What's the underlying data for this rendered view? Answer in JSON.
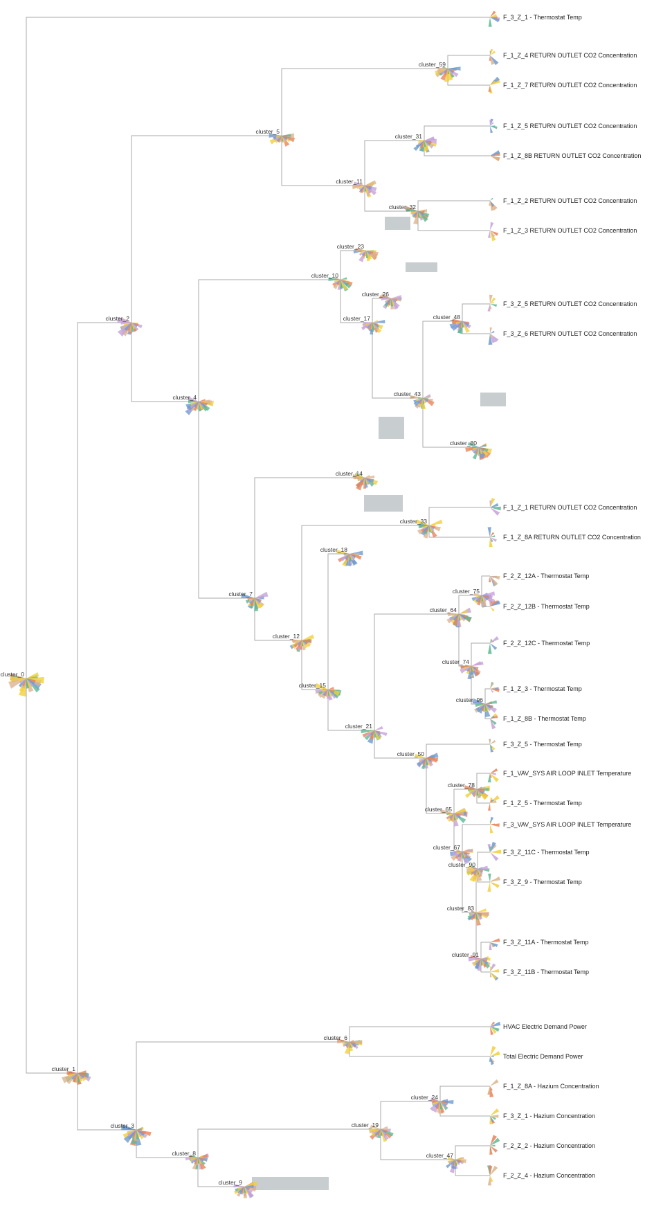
{
  "palette": [
    "#e8835b",
    "#6f9bd1",
    "#c5a2d9",
    "#f2cf3b",
    "#5cb892",
    "#dcb48c"
  ],
  "clusters": [
    {
      "id": "cluster_0"
    },
    {
      "id": "cluster_1"
    },
    {
      "id": "cluster_2"
    },
    {
      "id": "cluster_3"
    },
    {
      "id": "cluster_4"
    },
    {
      "id": "cluster_5"
    },
    {
      "id": "cluster_6"
    },
    {
      "id": "cluster_7"
    },
    {
      "id": "cluster_8"
    },
    {
      "id": "cluster_9"
    },
    {
      "id": "cluster_10"
    },
    {
      "id": "cluster_11"
    },
    {
      "id": "cluster_12"
    },
    {
      "id": "cluster_14"
    },
    {
      "id": "cluster_15"
    },
    {
      "id": "cluster_17"
    },
    {
      "id": "cluster_18"
    },
    {
      "id": "cluster_19"
    },
    {
      "id": "cluster_21"
    },
    {
      "id": "cluster_23"
    },
    {
      "id": "cluster_24"
    },
    {
      "id": "cluster_26"
    },
    {
      "id": "cluster_31"
    },
    {
      "id": "cluster_32"
    },
    {
      "id": "cluster_33"
    },
    {
      "id": "cluster_43"
    },
    {
      "id": "cluster_47"
    },
    {
      "id": "cluster_48"
    },
    {
      "id": "cluster_50"
    },
    {
      "id": "cluster_59"
    },
    {
      "id": "cluster_64"
    },
    {
      "id": "cluster_65"
    },
    {
      "id": "cluster_67"
    },
    {
      "id": "cluster_74"
    },
    {
      "id": "cluster_75"
    },
    {
      "id": "cluster_78"
    },
    {
      "id": "cluster_80"
    },
    {
      "id": "cluster_83"
    },
    {
      "id": "cluster_90"
    },
    {
      "id": "cluster_91"
    },
    {
      "id": "cluster_96"
    }
  ],
  "leaves": [
    "F_3_Z_1 - Thermostat Temp",
    "F_1_Z_4 RETURN OUTLET CO2 Concentration",
    "F_1_Z_7 RETURN OUTLET CO2 Concentration",
    "F_1_Z_5 RETURN OUTLET CO2 Concentration",
    "F_1_Z_8B RETURN OUTLET CO2 Concentration",
    "F_1_Z_2 RETURN OUTLET CO2 Concentration",
    "F_1_Z_3 RETURN OUTLET CO2 Concentration",
    "F_3_Z_5 RETURN OUTLET CO2 Concentration",
    "F_3_Z_6 RETURN OUTLET CO2 Concentration",
    "F_1_Z_1 RETURN OUTLET CO2 Concentration",
    "F_1_Z_8A RETURN OUTLET CO2 Concentration",
    "F_2_Z_12A - Thermostat Temp",
    "F_2_Z_12B - Thermostat Temp",
    "F_2_Z_12C - Thermostat Temp",
    "F_1_Z_3 - Thermostat Temp",
    "F_1_Z_8B - Thermostat Temp",
    "F_3_Z_5 - Thermostat Temp",
    "F_1_VAV_SYS AIR LOOP INLET Temperature",
    "F_1_Z_5 - Thermostat Temp",
    "F_3_VAV_SYS AIR LOOP INLET Temperature",
    "F_3_Z_11C - Thermostat Temp",
    "F_3_Z_9 - Thermostat Temp",
    "F_3_Z_11A - Thermostat Temp",
    "F_3_Z_11B - Thermostat Temp",
    "HVAC Electric Demand Power",
    "Total Electric Demand Power",
    "F_1_Z_8A - Hazium Concentration",
    "F_3_Z_1 - Hazium Concentration",
    "F_2_Z_2 - Hazium Concentration",
    "F_2_Z_4 - Hazium Concentration"
  ]
}
